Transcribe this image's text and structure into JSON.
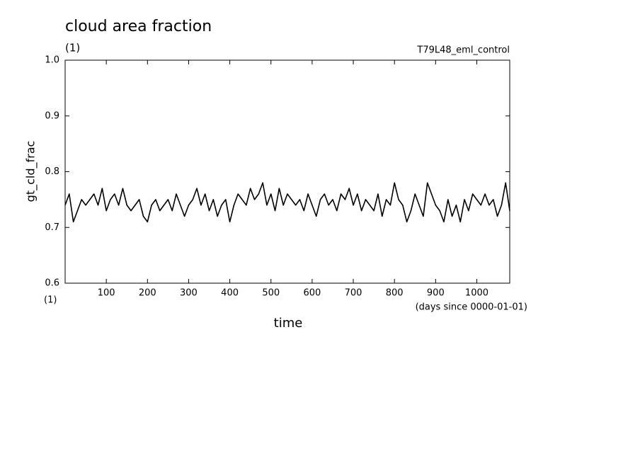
{
  "chart_data": {
    "type": "line",
    "title": "cloud area fraction",
    "subtitle": "(1)",
    "annotation": "T79L48_eml_control",
    "ylabel": "gt_cld_frac",
    "yunit": "(1)",
    "xlabel": "time",
    "xunit": "(days since 0000-01-01)",
    "color": "#000000",
    "xlim": [
      0,
      1080
    ],
    "ylim": [
      0.6,
      1
    ],
    "xticks": [
      100,
      200,
      300,
      400,
      500,
      600,
      700,
      800,
      900,
      1000
    ],
    "yticks": [
      0.6,
      0.7,
      0.8,
      0.9,
      {
        "value": 1,
        "label": "1.0"
      }
    ],
    "x": [
      0,
      10,
      20,
      30,
      40,
      50,
      60,
      70,
      80,
      90,
      100,
      110,
      120,
      130,
      140,
      150,
      160,
      170,
      180,
      190,
      200,
      210,
      220,
      230,
      240,
      250,
      260,
      270,
      280,
      290,
      300,
      310,
      320,
      330,
      340,
      350,
      360,
      370,
      380,
      390,
      400,
      410,
      420,
      430,
      440,
      450,
      460,
      470,
      480,
      490,
      500,
      510,
      520,
      530,
      540,
      550,
      560,
      570,
      580,
      590,
      600,
      610,
      620,
      630,
      640,
      650,
      660,
      670,
      680,
      690,
      700,
      710,
      720,
      730,
      740,
      750,
      760,
      770,
      780,
      790,
      800,
      810,
      820,
      830,
      840,
      850,
      860,
      870,
      880,
      890,
      900,
      910,
      920,
      930,
      940,
      950,
      960,
      970,
      980,
      990,
      1000,
      1010,
      1020,
      1030,
      1040,
      1050,
      1060,
      1070,
      1080
    ],
    "values": [
      0.74,
      0.76,
      0.71,
      0.73,
      0.75,
      0.74,
      0.75,
      0.76,
      0.74,
      0.77,
      0.73,
      0.75,
      0.76,
      0.74,
      0.77,
      0.74,
      0.73,
      0.74,
      0.75,
      0.72,
      0.71,
      0.74,
      0.75,
      0.73,
      0.74,
      0.75,
      0.73,
      0.76,
      0.74,
      0.72,
      0.74,
      0.75,
      0.77,
      0.74,
      0.76,
      0.73,
      0.75,
      0.72,
      0.74,
      0.75,
      0.71,
      0.74,
      0.76,
      0.75,
      0.74,
      0.77,
      0.75,
      0.76,
      0.78,
      0.74,
      0.76,
      0.73,
      0.77,
      0.74,
      0.76,
      0.75,
      0.74,
      0.75,
      0.73,
      0.76,
      0.74,
      0.72,
      0.75,
      0.76,
      0.74,
      0.75,
      0.73,
      0.76,
      0.75,
      0.77,
      0.74,
      0.76,
      0.73,
      0.75,
      0.74,
      0.73,
      0.76,
      0.72,
      0.75,
      0.74,
      0.78,
      0.75,
      0.74,
      0.71,
      0.73,
      0.76,
      0.74,
      0.72,
      0.78,
      0.76,
      0.74,
      0.73,
      0.71,
      0.75,
      0.72,
      0.74,
      0.71,
      0.75,
      0.73,
      0.76,
      0.75,
      0.74,
      0.76,
      0.74,
      0.75,
      0.72,
      0.74,
      0.78,
      0.73
    ]
  }
}
